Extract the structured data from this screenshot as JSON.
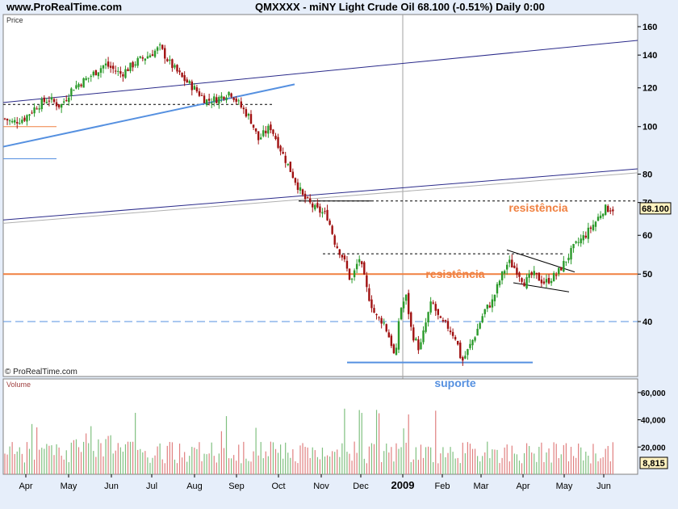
{
  "header": {
    "site": "www.ProRealTime.com",
    "title": "QMXXXX - miNY Light Crude Oil    68.100 (-0.51%)    Daily  0:00"
  },
  "colors": {
    "background": "#e6eefa",
    "panel": "#ffffff",
    "up_candle": "#2a9a2a",
    "down_candle": "#a01010",
    "resistance": "#f08040",
    "support": "#5590e0",
    "trendline": "#2a2a8a",
    "volume_up": "#80c080",
    "volume_down": "#e08080"
  },
  "chart_data": [
    {
      "type": "candlestick",
      "panel_label": "Price",
      "source_label": "© ProRealTime.com",
      "y_scale": "log",
      "ylim": [
        30,
        170
      ],
      "y_ticks": [
        40,
        50,
        60,
        70,
        80,
        100,
        120,
        140,
        160
      ],
      "month_labels": [
        "Apr",
        "May",
        "Jun",
        "Jul",
        "Aug",
        "Sep",
        "Oct",
        "Nov",
        "Dec",
        "2009",
        "Feb",
        "Mar",
        "Apr",
        "May",
        "Jun"
      ],
      "last_price_label": "68.100",
      "close_path": [
        [
          0,
          105
        ],
        [
          15,
          102
        ],
        [
          30,
          104
        ],
        [
          45,
          110
        ],
        [
          60,
          114
        ],
        [
          75,
          110
        ],
        [
          90,
          120
        ],
        [
          110,
          126
        ],
        [
          130,
          134
        ],
        [
          150,
          128
        ],
        [
          170,
          136
        ],
        [
          185,
          140
        ],
        [
          198,
          145
        ],
        [
          210,
          135
        ],
        [
          225,
          126
        ],
        [
          240,
          120
        ],
        [
          255,
          113
        ],
        [
          270,
          114
        ],
        [
          285,
          118
        ],
        [
          298,
          110
        ],
        [
          310,
          104
        ],
        [
          320,
          94
        ],
        [
          335,
          100
        ],
        [
          350,
          88
        ],
        [
          362,
          80
        ],
        [
          375,
          72
        ],
        [
          390,
          68
        ],
        [
          405,
          66
        ],
        [
          415,
          58
        ],
        [
          425,
          54
        ],
        [
          435,
          48
        ],
        [
          445,
          54
        ],
        [
          455,
          46
        ],
        [
          465,
          41
        ],
        [
          475,
          40
        ],
        [
          485,
          36
        ],
        [
          490,
          33
        ],
        [
          495,
          42
        ],
        [
          503,
          45
        ],
        [
          510,
          38
        ],
        [
          520,
          35
        ],
        [
          528,
          40
        ],
        [
          535,
          44
        ],
        [
          545,
          40
        ],
        [
          555,
          39
        ],
        [
          565,
          37
        ],
        [
          572,
          33
        ],
        [
          580,
          35
        ],
        [
          590,
          38
        ],
        [
          600,
          42
        ],
        [
          610,
          44
        ],
        [
          620,
          49
        ],
        [
          630,
          53
        ],
        [
          640,
          51
        ],
        [
          650,
          48
        ],
        [
          660,
          50
        ],
        [
          675,
          48
        ],
        [
          690,
          50
        ],
        [
          700,
          53
        ],
        [
          712,
          57
        ],
        [
          725,
          60
        ],
        [
          738,
          64
        ],
        [
          748,
          68
        ],
        [
          760,
          68
        ]
      ],
      "annotations": [
        {
          "text": "resistência",
          "price": 70.5,
          "color": "#f08040"
        },
        {
          "text": "resistência",
          "price": 51.6,
          "color": "#f08040"
        },
        {
          "text": "suporte",
          "price": 31,
          "color": "#5590e0"
        }
      ],
      "reference_lines": [
        {
          "kind": "horizontal",
          "price": 50,
          "color": "#f08040"
        },
        {
          "kind": "horizontal-dashed",
          "price": 40,
          "color": "#5590e0"
        },
        {
          "kind": "horizontal",
          "price": 33,
          "color": "#5590e0"
        },
        {
          "kind": "horizontal-dotted",
          "price": 70.5,
          "color": "#000000"
        },
        {
          "kind": "horizontal-dotted",
          "price": 55,
          "color": "#000000"
        },
        {
          "kind": "horizontal-dotted",
          "price": 111,
          "color": "#000000"
        },
        {
          "kind": "trendline",
          "color": "#2a2a8a"
        }
      ]
    },
    {
      "type": "bar",
      "panel_label": "Volume",
      "ylim": [
        0,
        70000
      ],
      "y_ticks": [
        20000,
        40000,
        60000
      ],
      "y_tick_labels": [
        "20,000",
        "40,000",
        "60,000"
      ],
      "last_value_label": "8,815"
    }
  ]
}
